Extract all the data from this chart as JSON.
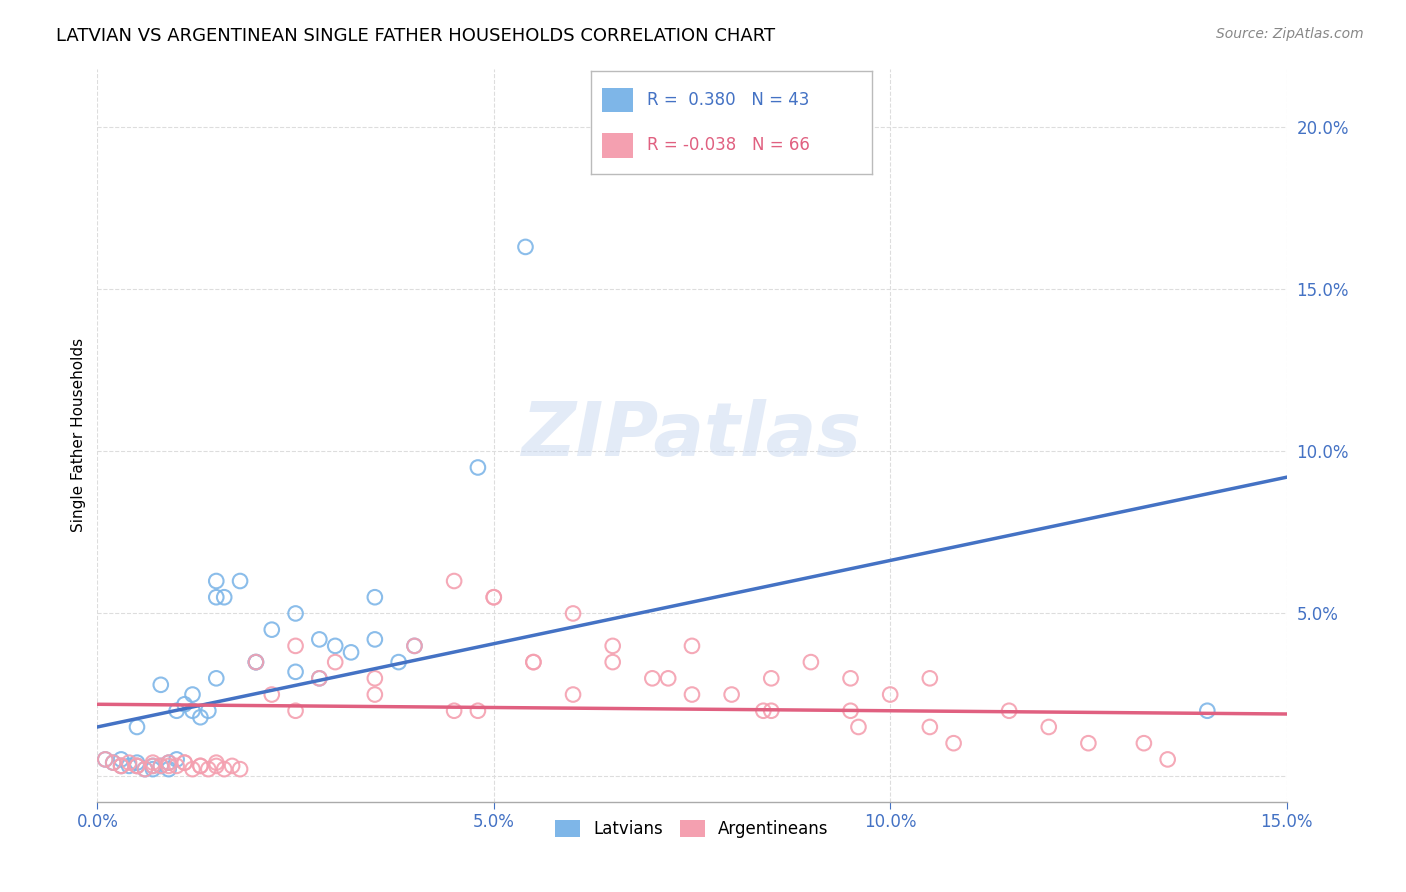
{
  "title": "LATVIAN VS ARGENTINEAN SINGLE FATHER HOUSEHOLDS CORRELATION CHART",
  "source": "Source: ZipAtlas.com",
  "ylabel": "Single Father Households",
  "xlim": [
    0.0,
    0.15
  ],
  "ylim": [
    -0.008,
    0.218
  ],
  "latvian_color": "#7EB6E8",
  "argentinean_color": "#F4A0B0",
  "latvian_R": 0.38,
  "latvian_N": 43,
  "argentinean_R": -0.038,
  "argentinean_N": 66,
  "blue_line_color": "#4472C4",
  "pink_line_color": "#E06080",
  "watermark_text": "ZIPatlas",
  "background_color": "#FFFFFF",
  "grid_color": "#DDDDDD",
  "tick_color": "#4472C4",
  "title_fontsize": 13,
  "source_fontsize": 10,
  "tick_fontsize": 12,
  "ylabel_fontsize": 11,
  "lv_line_x0": 0.0,
  "lv_line_y0": 0.015,
  "lv_line_x1": 0.15,
  "lv_line_y1": 0.092,
  "ar_line_x0": 0.0,
  "ar_line_y0": 0.022,
  "ar_line_x1": 0.15,
  "ar_line_y1": 0.019
}
